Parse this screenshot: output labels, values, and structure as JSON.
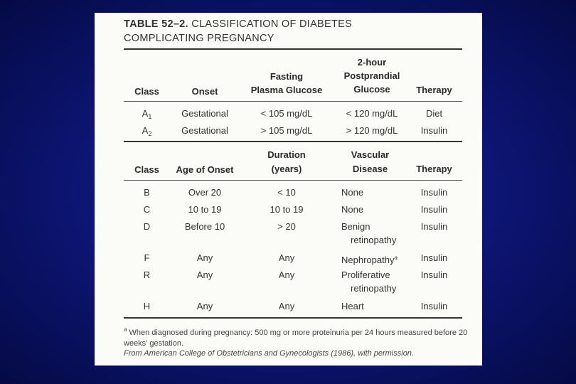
{
  "table": {
    "number": "TABLE 52–2.",
    "title_line1": "CLASSIFICATION OF DIABETES",
    "title_line2": "COMPLICATING PREGNANCY",
    "section1": {
      "headers": {
        "class": "Class",
        "onset": "Onset",
        "fasting_l1": "Fasting",
        "fasting_l2": "Plasma Glucose",
        "post_l1": "2-hour",
        "post_l2": "Postprandial",
        "post_l3": "Glucose",
        "therapy": "Therapy"
      },
      "rows": [
        {
          "class": "A",
          "sub": "1",
          "onset": "Gestational",
          "fasting": "< 105 mg/dL",
          "post": "< 120 mg/dL",
          "therapy": "Diet"
        },
        {
          "class": "A",
          "sub": "2",
          "onset": "Gestational",
          "fasting": "> 105 mg/dL",
          "post": "> 120 mg/dL",
          "therapy": "Insulin"
        }
      ]
    },
    "section2": {
      "headers": {
        "class": "Class",
        "age": "Age of Onset",
        "duration_l1": "Duration",
        "duration_l2": "(years)",
        "vascular_l1": "Vascular",
        "vascular_l2": "Disease",
        "therapy": "Therapy"
      },
      "rows": [
        {
          "class": "B",
          "age": "Over 20",
          "duration": "< 10",
          "vascular": "None",
          "therapy": "Insulin"
        },
        {
          "class": "C",
          "age": "10 to 19",
          "duration": "10 to 19",
          "vascular": "None",
          "therapy": "Insulin"
        },
        {
          "class": "D",
          "age": "Before 10",
          "duration": "> 20",
          "vascular": "Benign",
          "vascular2": "retinopathy",
          "therapy": "Insulin"
        },
        {
          "class": "F",
          "age": "Any",
          "duration": "Any",
          "vascular": "Nephropathy",
          "vascular_sup": "a",
          "therapy": "Insulin"
        },
        {
          "class": "R",
          "age": "Any",
          "duration": "Any",
          "vascular": "Proliferative",
          "vascular2": "retinopathy",
          "therapy": "Insulin"
        },
        {
          "class": "H",
          "age": "Any",
          "duration": "Any",
          "vascular": "Heart",
          "therapy": "Insulin"
        }
      ]
    },
    "footnote_mark": "a",
    "footnote_line1": "When diagnosed during pregnancy: 500 mg or more proteinuria per 24 hours measured before 20",
    "footnote_line2": "weeks' gestation.",
    "source": "From American College of Obstetricians and Gynecologists (1986), with permission."
  }
}
